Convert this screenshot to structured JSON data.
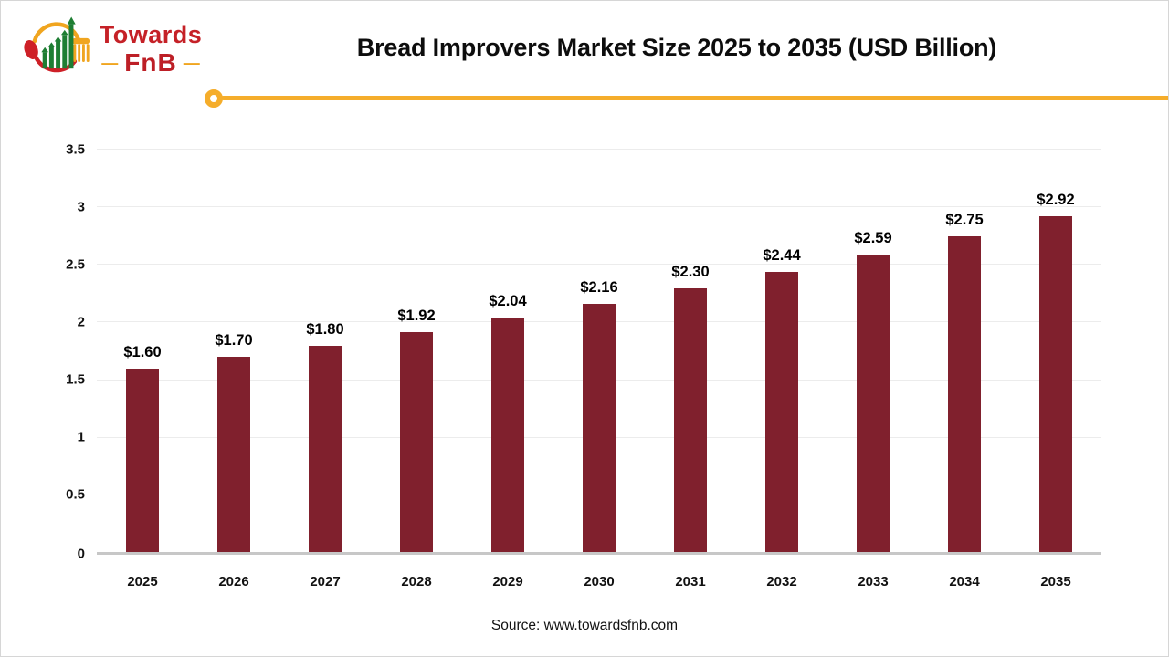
{
  "logo": {
    "towards": "Towards",
    "fnb": "FnB",
    "dash_left": "—",
    "dash_right": "—"
  },
  "header": {
    "title": "Bread Improvers Market Size 2025 to 2035 (USD Billion)"
  },
  "chart_data": {
    "type": "bar",
    "title": "Bread Improvers Market Size 2025 to 2035 (USD Billion)",
    "categories": [
      "2025",
      "2026",
      "2027",
      "2028",
      "2029",
      "2030",
      "2031",
      "2032",
      "2033",
      "2034",
      "2035"
    ],
    "values": [
      1.6,
      1.7,
      1.8,
      1.92,
      2.04,
      2.16,
      2.3,
      2.44,
      2.59,
      2.75,
      2.92
    ],
    "bar_labels": [
      "$1.60",
      "$1.70",
      "$1.80",
      "$1.92",
      "$2.04",
      "$2.16",
      "$2.30",
      "$2.44",
      "$2.59",
      "$2.75",
      "$2.92"
    ],
    "xlabel": "",
    "ylabel": "",
    "ylim": [
      0,
      3.5
    ],
    "yticks": [
      {
        "value": 0,
        "label": "0"
      },
      {
        "value": 0.5,
        "label": "0.5"
      },
      {
        "value": 1,
        "label": "1"
      },
      {
        "value": 1.5,
        "label": "1.5"
      },
      {
        "value": 2,
        "label": "2"
      },
      {
        "value": 2.5,
        "label": "2.5"
      },
      {
        "value": 3,
        "label": "3"
      },
      {
        "value": 3.5,
        "label": "3.5"
      }
    ],
    "grid": true,
    "legend": false,
    "bar_color": "#80202d"
  },
  "footer": {
    "source": "Source: www.towardsfnb.com"
  },
  "colors": {
    "bar_maroon": "#80202d",
    "accent_yellow": "#f5ad2b",
    "logo_red": "#c52127",
    "logo_yellow": "#f0a51f",
    "logo_green": "#1e7e33",
    "baseline_gray": "#c7c7c7",
    "gridline_gray": "#ececec"
  }
}
